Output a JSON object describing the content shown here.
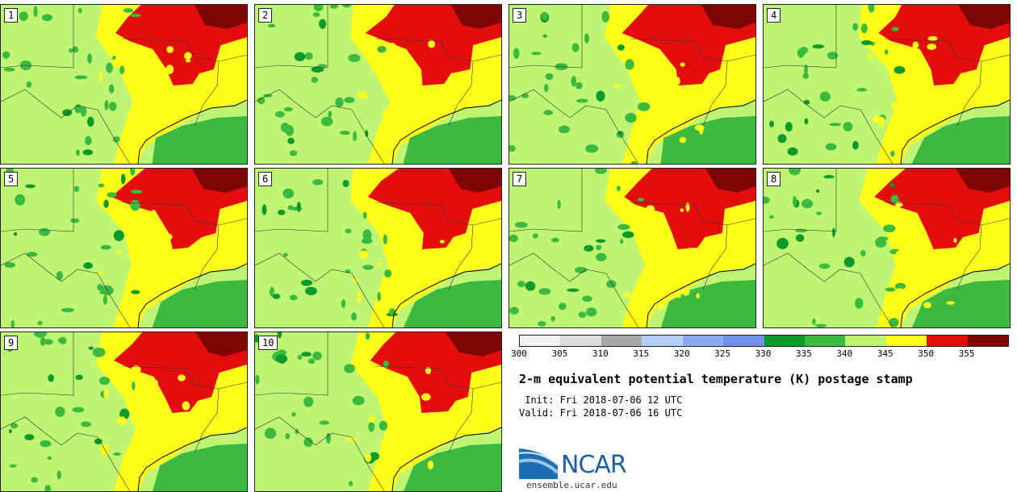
{
  "panels": [
    {
      "label": "1"
    },
    {
      "label": "2"
    },
    {
      "label": "3"
    },
    {
      "label": "4"
    },
    {
      "label": "5"
    },
    {
      "label": "6"
    },
    {
      "label": "7"
    },
    {
      "label": "8"
    },
    {
      "label": "9"
    },
    {
      "label": "10"
    }
  ],
  "colorbar": {
    "colors": [
      "#f2f2f2",
      "#dcdcdc",
      "#a8a8a8",
      "#b4cdf9",
      "#8ca8f0",
      "#7090ea",
      "#0e9a2a",
      "#3cba40",
      "#bff573",
      "#ffff1a",
      "#e40d0d",
      "#7f0404"
    ],
    "ticks": [
      "300",
      "305",
      "310",
      "315",
      "320",
      "325",
      "330",
      "335",
      "340",
      "345",
      "350",
      "355"
    ]
  },
  "title": "2-m equivalent potential temperature (K) postage stamp",
  "init": " Init: Fri 2018-07-06 12 UTC",
  "valid": "Valid: Fri 2018-07-06 16 UTC",
  "logo": {
    "text": "NCAR",
    "url": "ensemble.ucar.edu"
  }
}
